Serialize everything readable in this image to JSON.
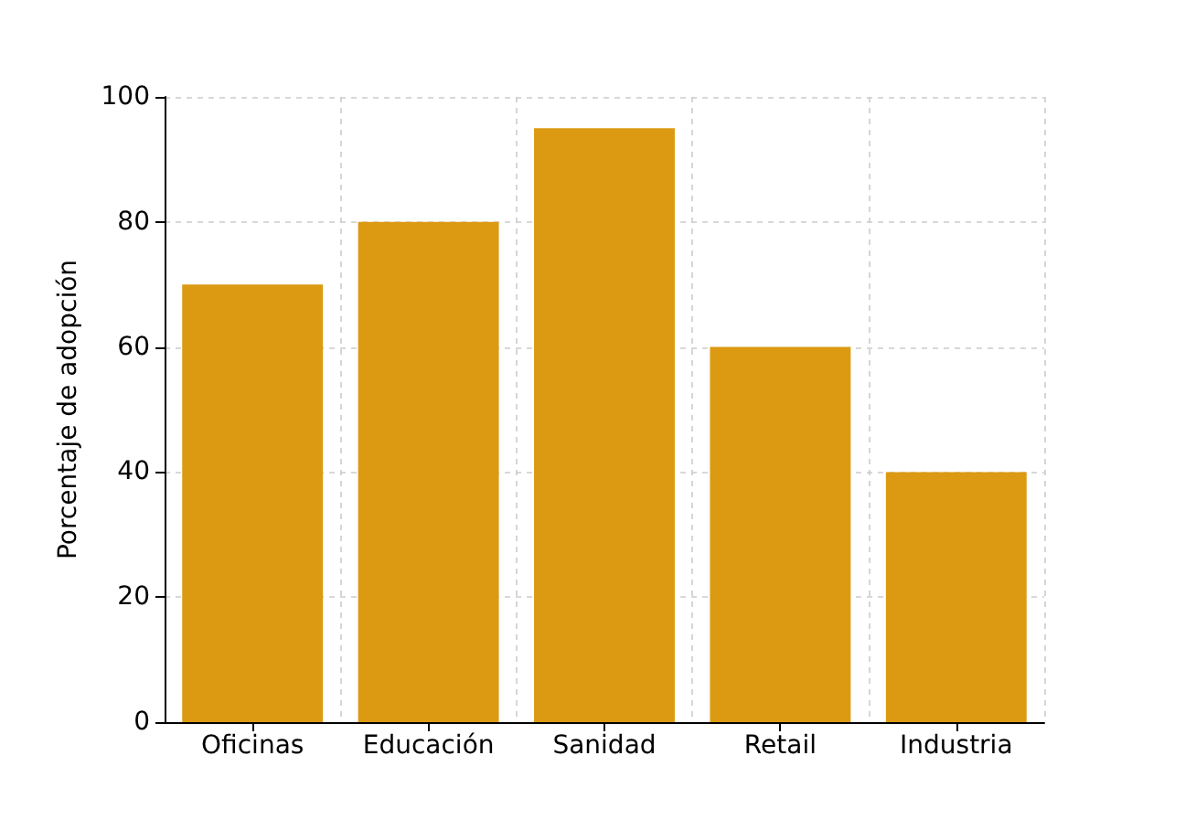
{
  "chart_data": {
    "type": "bar",
    "ylabel": "Porcentaje de adopción",
    "categories": [
      "Oficinas",
      "Educación",
      "Sanidad",
      "Retail",
      "Industria"
    ],
    "values": [
      70,
      80,
      95,
      60,
      40
    ],
    "color": "#dc9a12",
    "ylim": [
      0,
      100
    ],
    "yticks": [
      0,
      20,
      40,
      60,
      80,
      100
    ],
    "grid": true
  }
}
